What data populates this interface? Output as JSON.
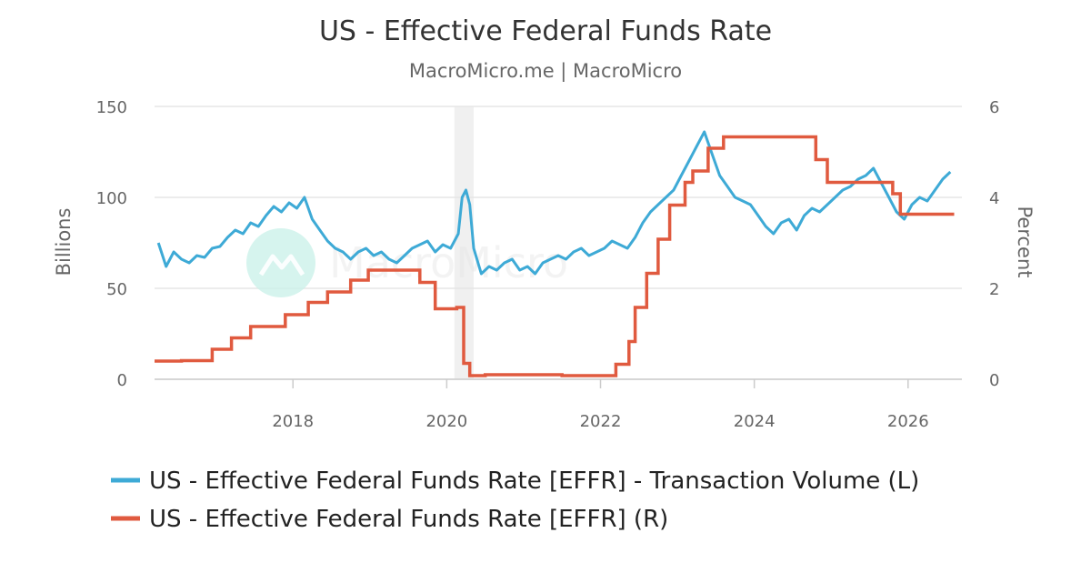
{
  "chart_data": {
    "type": "line",
    "title": "US - Effective Federal Funds Rate",
    "subtitle": "MacroMicro.me | MacroMicro",
    "watermark": "MacroMicro",
    "colors": {
      "volume": "#3eaad6",
      "rate": "#e05a3f",
      "recession": "#f0f0f0",
      "logo": "#c8f0e8"
    },
    "x_axis": {
      "range": [
        2016.2,
        2026.7
      ],
      "ticks": [
        "2018",
        "2020",
        "2022",
        "2024",
        "2026"
      ],
      "tick_values": [
        2018,
        2020,
        2022,
        2024,
        2026
      ]
    },
    "y_left": {
      "label": "Billions",
      "range": [
        0,
        150
      ],
      "ticks": [
        "0",
        "50",
        "100",
        "150"
      ],
      "tick_values": [
        0,
        50,
        100,
        150
      ]
    },
    "y_right": {
      "label": "Percent",
      "range": [
        0,
        6
      ],
      "ticks": [
        "0",
        "2",
        "4",
        "6"
      ],
      "tick_values": [
        0,
        2,
        4,
        6
      ]
    },
    "recession": [
      2020.1,
      2020.35
    ],
    "grid": true,
    "legend_position": "bottom-left",
    "series": [
      {
        "name": "US - Effective Federal Funds Rate [EFFR] - Transaction Volume (L)",
        "axis": "left",
        "x": [
          2016.25,
          2016.35,
          2016.45,
          2016.55,
          2016.65,
          2016.75,
          2016.85,
          2016.95,
          2017.05,
          2017.15,
          2017.25,
          2017.35,
          2017.45,
          2017.55,
          2017.65,
          2017.75,
          2017.85,
          2017.95,
          2018.05,
          2018.15,
          2018.25,
          2018.35,
          2018.45,
          2018.55,
          2018.65,
          2018.75,
          2018.85,
          2018.95,
          2019.05,
          2019.15,
          2019.25,
          2019.35,
          2019.45,
          2019.55,
          2019.65,
          2019.75,
          2019.85,
          2019.95,
          2020.05,
          2020.15,
          2020.2,
          2020.25,
          2020.3,
          2020.35,
          2020.45,
          2020.55,
          2020.65,
          2020.75,
          2020.85,
          2020.95,
          2021.05,
          2021.15,
          2021.25,
          2021.35,
          2021.45,
          2021.55,
          2021.65,
          2021.75,
          2021.85,
          2021.95,
          2022.05,
          2022.15,
          2022.25,
          2022.35,
          2022.45,
          2022.55,
          2022.65,
          2022.75,
          2022.85,
          2022.95,
          2023.05,
          2023.15,
          2023.25,
          2023.35,
          2023.45,
          2023.55,
          2023.65,
          2023.75,
          2023.85,
          2023.95,
          2024.05,
          2024.15,
          2024.25,
          2024.35,
          2024.45,
          2024.55,
          2024.65,
          2024.75,
          2024.85,
          2024.95,
          2025.05,
          2025.15,
          2025.25,
          2025.35,
          2025.45,
          2025.55,
          2025.65,
          2025.75,
          2025.85,
          2025.95,
          2026.05,
          2026.15,
          2026.25,
          2026.35,
          2026.45,
          2026.55
        ],
        "values": [
          75,
          62,
          70,
          66,
          64,
          68,
          67,
          72,
          73,
          78,
          82,
          80,
          86,
          84,
          90,
          95,
          92,
          97,
          94,
          100,
          88,
          82,
          76,
          72,
          70,
          66,
          70,
          72,
          68,
          70,
          66,
          64,
          68,
          72,
          74,
          76,
          70,
          74,
          72,
          80,
          100,
          104,
          96,
          72,
          58,
          62,
          60,
          64,
          66,
          60,
          62,
          58,
          64,
          66,
          68,
          66,
          70,
          72,
          68,
          70,
          72,
          76,
          74,
          72,
          78,
          86,
          92,
          96,
          100,
          104,
          112,
          120,
          128,
          136,
          124,
          112,
          106,
          100,
          98,
          96,
          90,
          84,
          80,
          86,
          88,
          82,
          90,
          94,
          92,
          96,
          100,
          104,
          106,
          110,
          112,
          116,
          108,
          100,
          92,
          88,
          96,
          100,
          98,
          104,
          110,
          114
        ]
      },
      {
        "name": "US - Effective Federal Funds Rate [EFFR] (R)",
        "axis": "right",
        "x": [
          2016.2,
          2016.55,
          2016.95,
          2017.2,
          2017.45,
          2017.9,
          2018.2,
          2018.45,
          2018.75,
          2018.98,
          2019.55,
          2019.65,
          2019.85,
          2020.13,
          2020.22,
          2020.3,
          2020.5,
          2021.5,
          2021.8,
          2022.2,
          2022.37,
          2022.45,
          2022.6,
          2022.75,
          2022.9,
          2023.1,
          2023.2,
          2023.4,
          2023.6,
          2024.7,
          2024.8,
          2024.95,
          2025.8,
          2025.9,
          2026.6
        ],
        "values": [
          0.4,
          0.41,
          0.66,
          0.91,
          1.16,
          1.42,
          1.69,
          1.92,
          2.18,
          2.4,
          2.4,
          2.13,
          1.55,
          1.58,
          0.35,
          0.08,
          0.1,
          0.08,
          0.08,
          0.33,
          0.83,
          1.58,
          2.33,
          3.08,
          3.83,
          4.33,
          4.58,
          5.08,
          5.33,
          5.33,
          4.83,
          4.33,
          4.08,
          3.63,
          3.63
        ]
      }
    ]
  }
}
